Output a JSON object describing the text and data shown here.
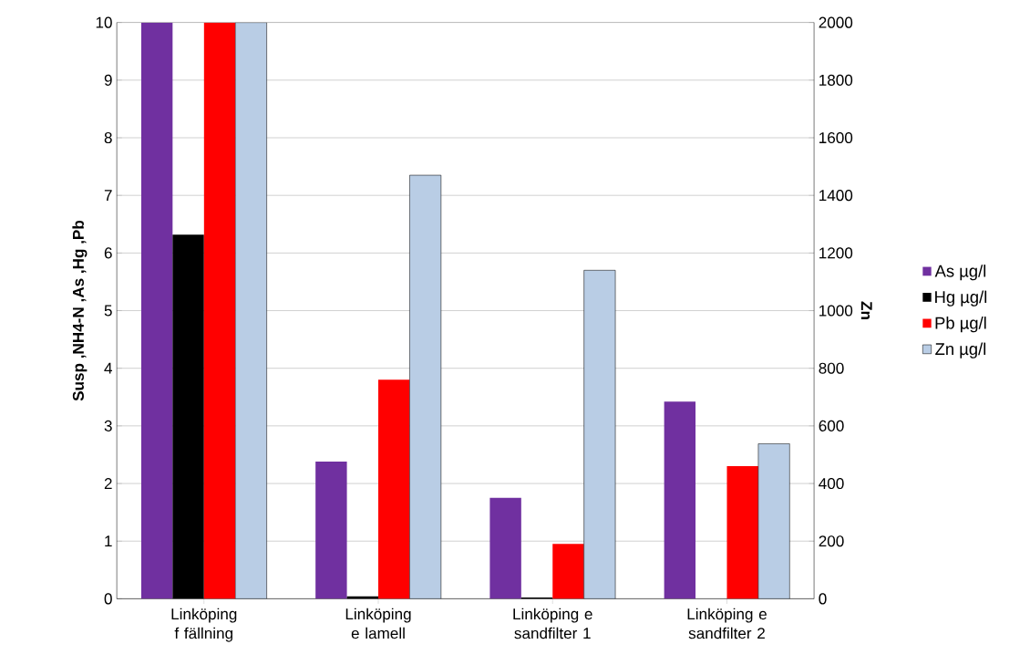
{
  "chart_data": {
    "type": "bar",
    "ylabel": "Susp ,NH4-N ,As ,Hg ,Pb",
    "y2label": "Zn",
    "categories": [
      "Linköping f fällning",
      "Linköping e lamell",
      "Linköping e sandfilter 1",
      "Linköping e sandfilter 2"
    ],
    "series": [
      {
        "name": "As µg/l",
        "color": "#7030a0",
        "values": [
          10,
          2.38,
          1.75,
          3.42
        ]
      },
      {
        "name": "Hg µg/l",
        "color": "#000000",
        "values": [
          6.32,
          0.04,
          0.02,
          0
        ]
      },
      {
        "name": "Pb µg/l",
        "color": "#ff0000",
        "values": [
          10,
          3.8,
          0.95,
          2.3
        ]
      },
      {
        "name": "Zn µg/l",
        "color": "#b9cde5",
        "values": [
          2000,
          1470,
          1140,
          538
        ],
        "axis": "y2"
      }
    ],
    "ylim": [
      0,
      10
    ],
    "yticks": [
      0,
      1,
      2,
      3,
      4,
      5,
      6,
      7,
      8,
      9,
      10
    ],
    "y2lim": [
      0,
      2000
    ],
    "y2ticks": [
      0,
      200,
      400,
      600,
      800,
      1000,
      1200,
      1400,
      1600,
      1800,
      2000
    ],
    "grid": "y",
    "legend": "right"
  }
}
